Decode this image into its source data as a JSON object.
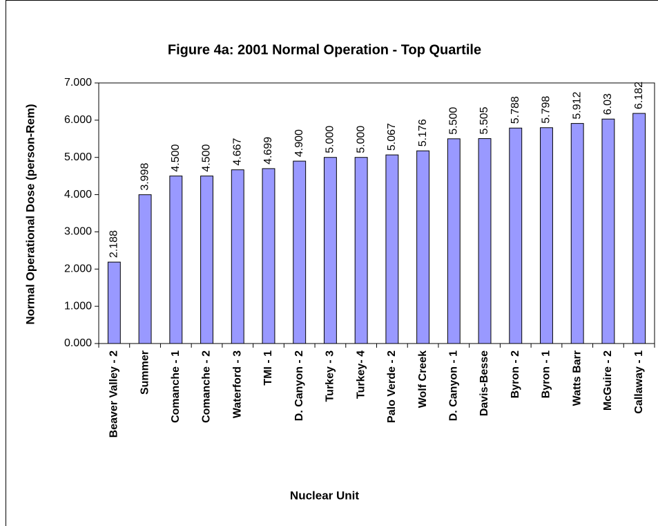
{
  "chart_data": {
    "type": "bar",
    "title": "Figure 4a: 2001 Normal Operation - Top Quartile",
    "x_label": "Nuclear Unit",
    "y_label": "Normal Operational Dose (person-Rem)",
    "categories": [
      "Beaver Valley - 2",
      "Summer",
      "Comanche - 1",
      "Comanche - 2",
      "Waterford - 3",
      "TMI - 1",
      "D. Canyon - 2",
      "Turkey - 3",
      "Turkey- 4",
      "Palo Verde - 2",
      "Wolf Creek",
      "D. Canyon - 1",
      "Davis-Besse",
      "Byron - 2",
      "Byron - 1",
      "Watts Barr",
      "McGuire - 2",
      "Callaway - 1"
    ],
    "values": [
      2.188,
      3.998,
      4.5,
      4.5,
      4.667,
      4.699,
      4.9,
      5.0,
      5.0,
      5.067,
      5.176,
      5.5,
      5.505,
      5.788,
      5.798,
      5.912,
      6.03,
      6.182
    ],
    "value_labels": [
      "2.188",
      "3.998",
      "4.500",
      "4.500",
      "4.667",
      "4.699",
      "4.900",
      "5.000",
      "5.000",
      "5.067",
      "5.176",
      "5.500",
      "5.505",
      "5.788",
      "5.798",
      "5.912",
      "6.03",
      "6.182"
    ],
    "color": "#9999ff",
    "ylim": [
      0,
      7
    ],
    "yticks": [
      {
        "value": 0,
        "label": "0.000"
      },
      {
        "value": 1,
        "label": "1.000"
      },
      {
        "value": 2,
        "label": "2.000"
      },
      {
        "value": 3,
        "label": "3.000"
      },
      {
        "value": 4,
        "label": "4.000"
      },
      {
        "value": 5,
        "label": "5.000"
      },
      {
        "value": 6,
        "label": "6.000"
      },
      {
        "value": 7,
        "label": "7.000"
      }
    ],
    "grid": false
  }
}
